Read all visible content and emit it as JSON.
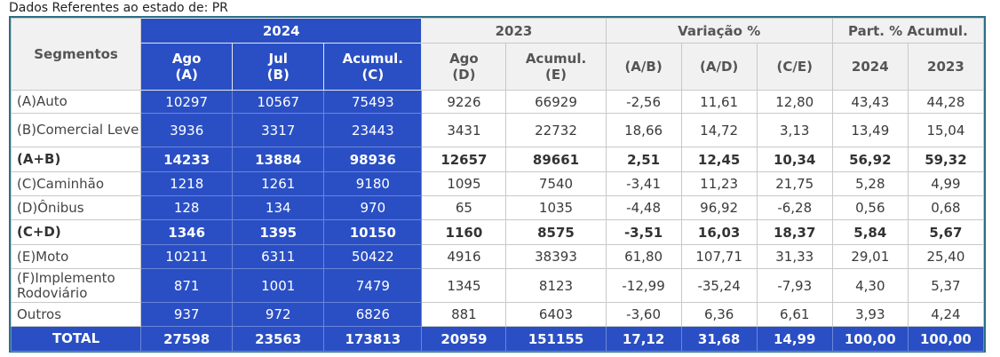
{
  "caption": "Dados Referentes ao estado de: PR",
  "header": {
    "segmentos": "Segmentos",
    "y2024": "2024",
    "y2023": "2023",
    "variacao": "Variação %",
    "part": "Part. % Acumul.",
    "cols": [
      {
        "l1": "Ago",
        "l2": "(A)"
      },
      {
        "l1": "Jul",
        "l2": "(B)"
      },
      {
        "l1": "Acumul.",
        "l2": "(C)"
      },
      {
        "l1": "Ago",
        "l2": "(D)"
      },
      {
        "l1": "Acumul.",
        "l2": "(E)"
      },
      {
        "l1": "(A/B)"
      },
      {
        "l1": "(A/D)"
      },
      {
        "l1": "(C/E)"
      },
      {
        "l1": "2024"
      },
      {
        "l1": "2023"
      }
    ]
  },
  "rows": [
    {
      "seg": "(A)Auto",
      "v": [
        "10297",
        "10567",
        "75493",
        "9226",
        "66929",
        "-2,56",
        "11,61",
        "12,80",
        "43,43",
        "44,28"
      ]
    },
    {
      "seg": "(B)Comercial Leve",
      "v": [
        "3936",
        "3317",
        "23443",
        "3431",
        "22732",
        "18,66",
        "14,72",
        "3,13",
        "13,49",
        "15,04"
      ]
    },
    {
      "seg": "(A+B)",
      "bold": true,
      "v": [
        "14233",
        "13884",
        "98936",
        "12657",
        "89661",
        "2,51",
        "12,45",
        "10,34",
        "56,92",
        "59,32"
      ]
    },
    {
      "seg": "(C)Caminhão",
      "v": [
        "1218",
        "1261",
        "9180",
        "1095",
        "7540",
        "-3,41",
        "11,23",
        "21,75",
        "5,28",
        "4,99"
      ]
    },
    {
      "seg": "(D)Ônibus",
      "v": [
        "128",
        "134",
        "970",
        "65",
        "1035",
        "-4,48",
        "96,92",
        "-6,28",
        "0,56",
        "0,68"
      ]
    },
    {
      "seg": "(C+D)",
      "bold": true,
      "v": [
        "1346",
        "1395",
        "10150",
        "1160",
        "8575",
        "-3,51",
        "16,03",
        "18,37",
        "5,84",
        "5,67"
      ]
    },
    {
      "seg": "(E)Moto",
      "v": [
        "10211",
        "6311",
        "50422",
        "4916",
        "38393",
        "61,80",
        "107,71",
        "31,33",
        "29,01",
        "25,40"
      ]
    },
    {
      "seg": "(F)Implemento Rodoviário",
      "v": [
        "871",
        "1001",
        "7479",
        "1345",
        "8123",
        "-12,99",
        "-35,24",
        "-7,93",
        "4,30",
        "5,37"
      ]
    },
    {
      "seg": "Outros",
      "v": [
        "937",
        "972",
        "6826",
        "881",
        "6403",
        "-3,60",
        "6,36",
        "6,61",
        "3,93",
        "4,24"
      ]
    }
  ],
  "total": {
    "seg": "TOTAL",
    "v": [
      "27598",
      "23563",
      "173813",
      "20959",
      "151155",
      "17,12",
      "31,68",
      "14,99",
      "100,00",
      "100,00"
    ]
  }
}
